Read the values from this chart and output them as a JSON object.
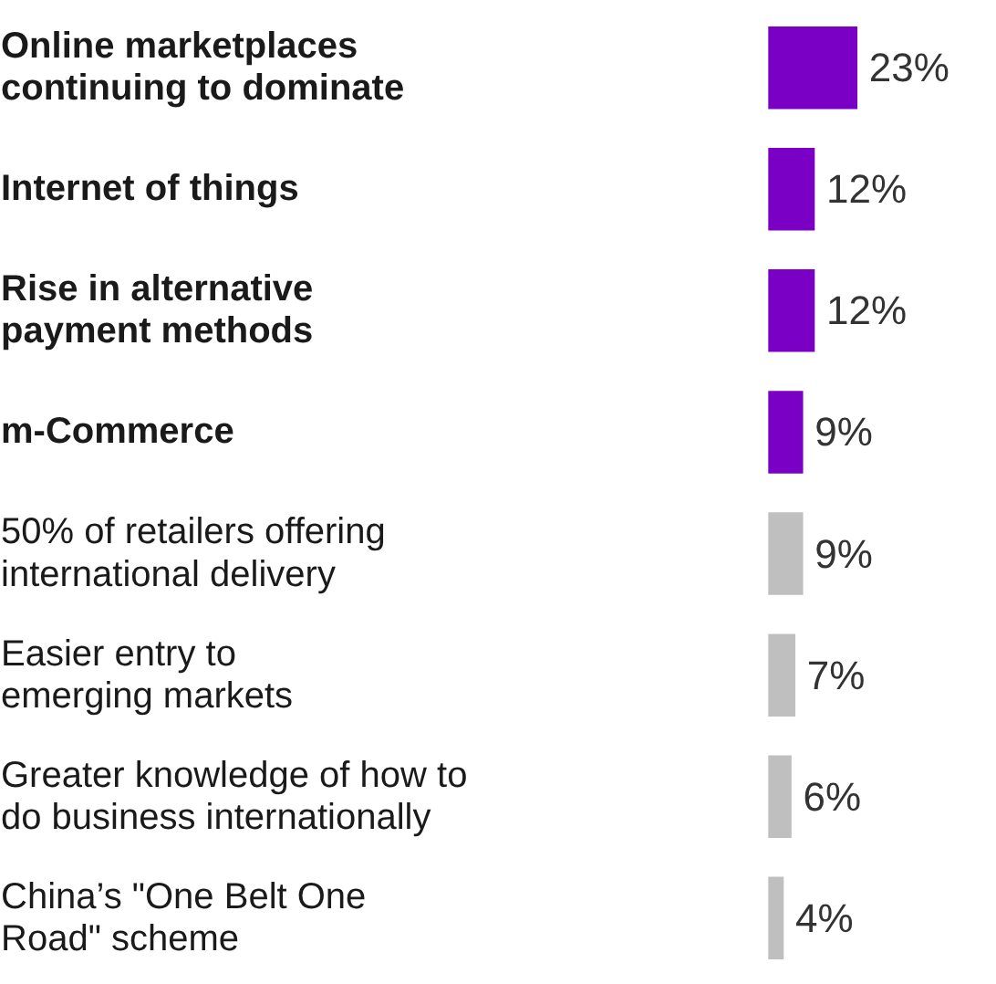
{
  "chart_data": {
    "type": "bar",
    "orientation": "horizontal",
    "data_labels": true,
    "categories": [
      "Online marketplaces\ncontinuing to dominate",
      "Internet of things",
      "Rise in alternative\npayment methods",
      "m-Commerce",
      "50% of retailers offering\ninternational delivery",
      "Easier entry to\nemerging markets",
      "Greater knowledge of how to\ndo business internationally",
      "China’s \"One Belt One\nRoad\" scheme"
    ],
    "values": [
      23,
      12,
      12,
      9,
      9,
      7,
      6,
      4
    ],
    "value_labels": [
      "23%",
      "12%",
      "12%",
      "9%",
      "9%",
      "7%",
      "6%",
      "4%"
    ],
    "colors": [
      "#7a00c6",
      "#7a00c6",
      "#7a00c6",
      "#7a00c6",
      "#bfbfbf",
      "#bfbfbf",
      "#bfbfbf",
      "#bfbfbf"
    ]
  }
}
